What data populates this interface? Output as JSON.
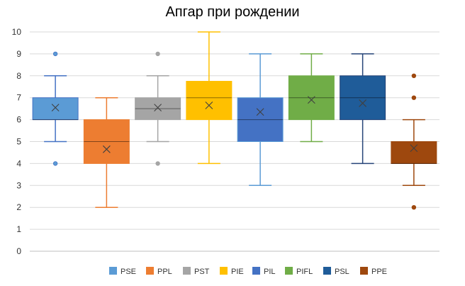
{
  "chart_data": {
    "type": "boxplot",
    "title": "Апгар при рождении",
    "ylim": [
      0,
      10
    ],
    "yticks": [
      "0",
      "1",
      "2",
      "3",
      "4",
      "5",
      "6",
      "7",
      "8",
      "9",
      "10"
    ],
    "grid": true,
    "legend_position": "bottom",
    "series": [
      {
        "name": "PSE",
        "color": "#4472C4",
        "fill": "#5B9BD5",
        "min": 5,
        "q1": 6,
        "median": 6,
        "q3": 7,
        "max": 8,
        "mean": 6.55,
        "outliers": [
          9,
          4
        ]
      },
      {
        "name": "PPL",
        "color": "#ED7D31",
        "fill": "#ED7D31",
        "min": 2,
        "q1": 4,
        "median": 5,
        "q3": 6,
        "max": 7,
        "mean": 4.65,
        "outliers": []
      },
      {
        "name": "PST",
        "color": "#A5A5A5",
        "fill": "#A5A5A5",
        "min": 5,
        "q1": 6,
        "median": 6.5,
        "q3": 7,
        "max": 8,
        "mean": 6.55,
        "outliers": [
          9,
          4
        ]
      },
      {
        "name": "PIE",
        "color": "#FFC000",
        "fill": "#FFC000",
        "min": 4,
        "q1": 6,
        "median": 7,
        "q3": 7.75,
        "max": 10,
        "mean": 6.65,
        "outliers": []
      },
      {
        "name": "PIL",
        "color": "#5B9BD5",
        "fill": "#4472C4",
        "min": 3,
        "q1": 5,
        "median": 6,
        "q3": 7,
        "max": 9,
        "mean": 6.35,
        "outliers": []
      },
      {
        "name": "PIFL",
        "color": "#70AD47",
        "fill": "#70AD47",
        "min": 5,
        "q1": 6,
        "median": 7,
        "q3": 8,
        "max": 9,
        "mean": 6.9,
        "outliers": []
      },
      {
        "name": "PSL",
        "color": "#264478",
        "fill": "#1F5C99",
        "min": 4,
        "q1": 6,
        "median": 7,
        "q3": 8,
        "max": 9,
        "mean": 6.75,
        "outliers": []
      },
      {
        "name": "PPE",
        "color": "#9E480E",
        "fill": "#9E480E",
        "min": 3,
        "q1": 4,
        "median": 4,
        "q3": 5,
        "max": 6,
        "mean": 4.7,
        "outliers": [
          8,
          7,
          2
        ]
      }
    ]
  }
}
